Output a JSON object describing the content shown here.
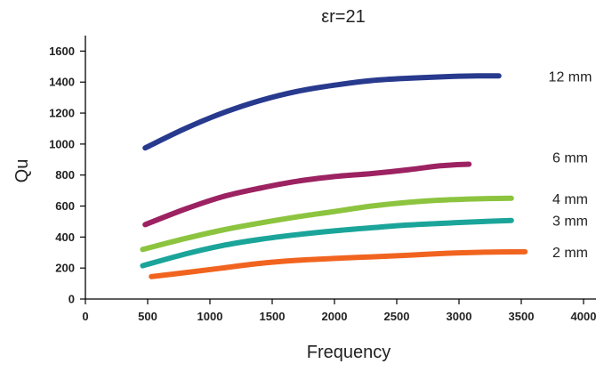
{
  "chart_data": {
    "type": "line",
    "title": "εr=21",
    "xlabel": "Frequency",
    "ylabel": "Qu",
    "xlim": [
      0,
      4000
    ],
    "ylim": [
      0,
      1700
    ],
    "x_ticks": [
      0,
      500,
      1000,
      1500,
      2000,
      2500,
      3000,
      3500,
      4000
    ],
    "y_ticks": [
      0,
      200,
      400,
      600,
      800,
      1000,
      1200,
      1400,
      1600
    ],
    "grid": false,
    "legend": "labels at right end of each line",
    "series": [
      {
        "name": "12 mm",
        "color": "#283a8e",
        "x": [
          480,
          800,
          1100,
          1400,
          1700,
          2000,
          2300,
          2600,
          2900,
          3150,
          3320
        ],
        "y": [
          975,
          1100,
          1200,
          1280,
          1340,
          1380,
          1410,
          1425,
          1435,
          1440,
          1440
        ]
      },
      {
        "name": "6 mm",
        "color": "#9c2262",
        "x": [
          480,
          800,
          1100,
          1400,
          1700,
          2000,
          2300,
          2600,
          2850,
          3080
        ],
        "y": [
          480,
          580,
          660,
          715,
          760,
          790,
          810,
          835,
          860,
          870
        ]
      },
      {
        "name": "4 mm",
        "color": "#8cc43f",
        "x": [
          460,
          800,
          1100,
          1400,
          1700,
          2000,
          2300,
          2600,
          2900,
          3200,
          3420
        ],
        "y": [
          320,
          390,
          445,
          490,
          530,
          565,
          600,
          625,
          640,
          648,
          650
        ]
      },
      {
        "name": "3 mm",
        "color": "#1ba59a",
        "x": [
          460,
          800,
          1100,
          1400,
          1700,
          2000,
          2300,
          2600,
          2900,
          3200,
          3420
        ],
        "y": [
          215,
          290,
          345,
          385,
          415,
          440,
          460,
          478,
          490,
          500,
          507
        ]
      },
      {
        "name": "2 mm",
        "color": "#f1641f",
        "x": [
          530,
          800,
          1100,
          1400,
          1700,
          2000,
          2300,
          2600,
          2900,
          3200,
          3530
        ],
        "y": [
          145,
          170,
          200,
          230,
          250,
          262,
          272,
          283,
          295,
          302,
          305
        ]
      }
    ]
  }
}
